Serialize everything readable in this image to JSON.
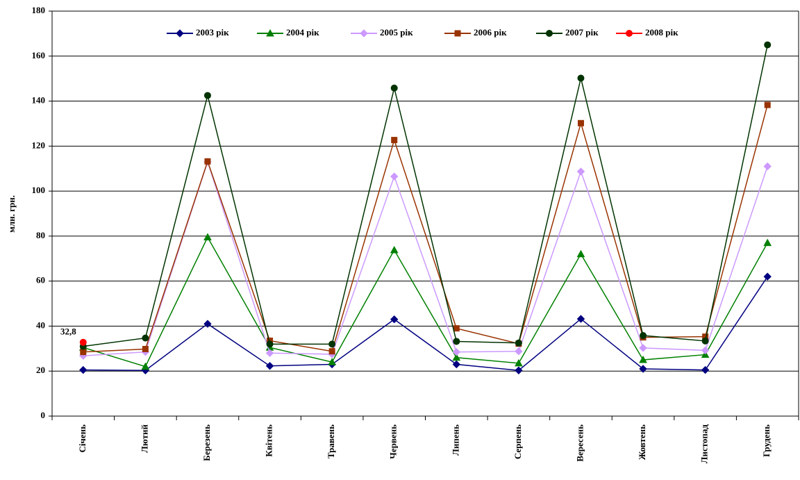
{
  "chart_data": {
    "type": "line",
    "y_label": "млн. грн.",
    "categories": [
      "Січень",
      "Лютий",
      "Березень",
      "Квітень",
      "Травень",
      "Червень",
      "Липень",
      "Серпень",
      "Вересень",
      "Жовтень",
      "Листопад",
      "Грудень"
    ],
    "series": [
      {
        "name": "2003 рік",
        "color": "#000080",
        "marker": "diamond",
        "values": [
          20.5,
          20.3,
          41,
          22.3,
          23,
          43,
          23,
          20.3,
          43.2,
          21,
          20.5,
          62
        ]
      },
      {
        "name": "2004 рік",
        "color": "#008000",
        "marker": "triangle",
        "values": [
          30.5,
          22,
          79.5,
          30.5,
          24,
          73.8,
          26,
          23.5,
          72,
          25,
          27.3,
          77
        ]
      },
      {
        "name": "2005 рік",
        "color": "#cc99ff",
        "marker": "diamond",
        "values": [
          26.8,
          28.5,
          113,
          28,
          27.5,
          106.5,
          28.5,
          28.8,
          108.7,
          30.3,
          29.2,
          111
        ]
      },
      {
        "name": "2006 рік",
        "color": "#993300",
        "marker": "square",
        "values": [
          28.5,
          29.8,
          113.2,
          33.5,
          28.8,
          122.7,
          39,
          32.2,
          130.2,
          35,
          35.3,
          138.3
        ]
      },
      {
        "name": "2007 рік",
        "color": "#003300",
        "marker": "circle",
        "values": [
          31,
          34.7,
          142.5,
          32,
          32,
          145.8,
          33.2,
          32.5,
          150.2,
          35.8,
          33.4,
          165
        ]
      },
      {
        "name": "2008 рік",
        "color": "#ff0000",
        "marker": "circle",
        "values": [
          32.8,
          null,
          null,
          null,
          null,
          null,
          null,
          null,
          null,
          null,
          null,
          null
        ],
        "value_labels": [
          "32,8",
          null,
          null,
          null,
          null,
          null,
          null,
          null,
          null,
          null,
          null,
          null
        ]
      }
    ],
    "ylim": [
      0,
      180
    ],
    "yticks": [
      0,
      20,
      40,
      60,
      80,
      100,
      120,
      140,
      160,
      180
    ],
    "grid": true,
    "legend": "top"
  }
}
